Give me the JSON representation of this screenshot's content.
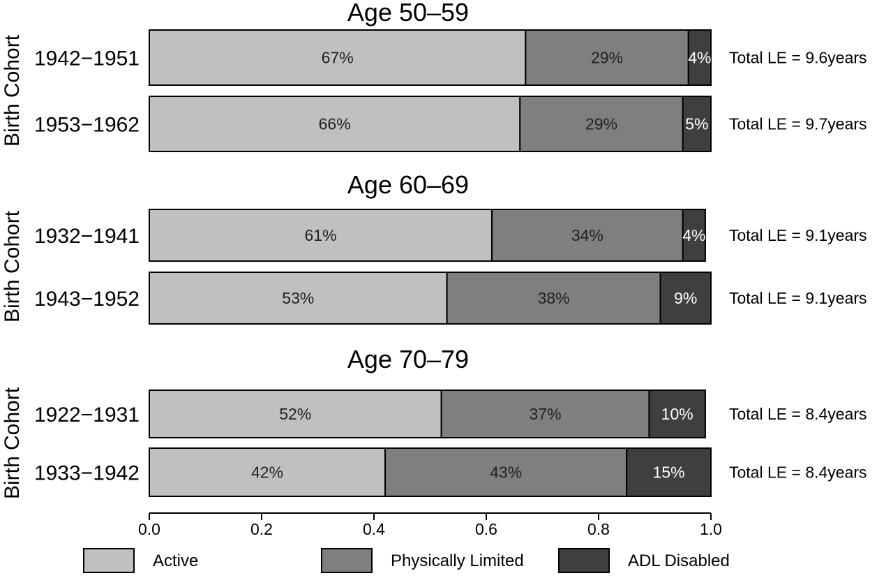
{
  "chart_data": {
    "type": "bar",
    "orientation": "horizontal",
    "stacked": true,
    "series_names": [
      "Active",
      "Physically Limited",
      "ADL Disabled"
    ],
    "colors": [
      "#c0c0c0",
      "#7f7f7f",
      "#3f3f3f"
    ],
    "label_colors": [
      "#222222",
      "#222222",
      "#ffffff"
    ],
    "ylabel": "Birth Cohort",
    "xlim": [
      0.0,
      1.0
    ],
    "xticks": [
      "0.0",
      "0.2",
      "0.4",
      "0.6",
      "0.8",
      "1.0"
    ],
    "grid": false,
    "legend_placement": "bottom",
    "panels": [
      {
        "title": "Age 50–59",
        "rows": [
          {
            "cohort": "1942−1951",
            "values": [
              0.67,
              0.29,
              0.04
            ],
            "labels": [
              "67%",
              "29%",
              "4%"
            ],
            "total": "Total LE = 9.6years"
          },
          {
            "cohort": "1953−1962",
            "values": [
              0.66,
              0.29,
              0.05
            ],
            "labels": [
              "66%",
              "29%",
              "5%"
            ],
            "total": "Total LE = 9.7years"
          }
        ]
      },
      {
        "title": "Age 60–69",
        "rows": [
          {
            "cohort": "1932−1941",
            "values": [
              0.61,
              0.34,
              0.04
            ],
            "labels": [
              "61%",
              "34%",
              "4%"
            ],
            "total": "Total LE = 9.1years"
          },
          {
            "cohort": "1943−1952",
            "values": [
              0.53,
              0.38,
              0.09
            ],
            "labels": [
              "53%",
              "38%",
              "9%"
            ],
            "total": "Total LE = 9.1years"
          }
        ]
      },
      {
        "title": "Age 70–79",
        "rows": [
          {
            "cohort": "1922−1931",
            "values": [
              0.52,
              0.37,
              0.1
            ],
            "labels": [
              "52%",
              "37%",
              "10%"
            ],
            "total": "Total LE = 8.4years"
          },
          {
            "cohort": "1933−1942",
            "values": [
              0.42,
              0.43,
              0.15
            ],
            "labels": [
              "42%",
              "43%",
              "15%"
            ],
            "total": "Total LE = 8.4years"
          }
        ]
      }
    ]
  }
}
